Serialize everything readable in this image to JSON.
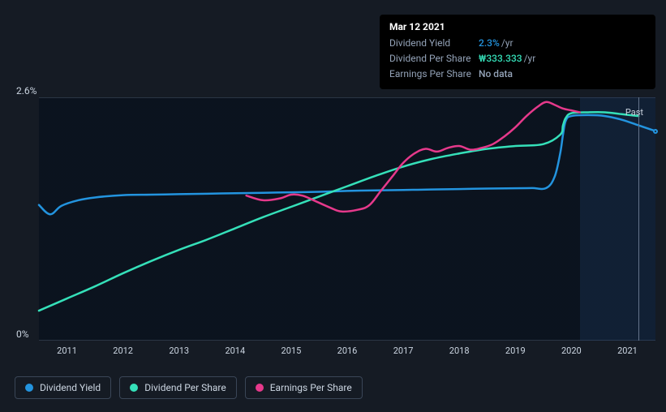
{
  "tooltip": {
    "date": "Mar 12 2021",
    "rows": [
      {
        "label": "Dividend Yield",
        "value": "2.3%",
        "suffix": "/yr",
        "color": "#2394df"
      },
      {
        "label": "Dividend Per Share",
        "value": "₩333.333",
        "suffix": "/yr",
        "color": "#35e0b9"
      },
      {
        "label": "Earnings Per Share",
        "value": "No data",
        "suffix": "",
        "color": "#94a3b8"
      }
    ]
  },
  "yaxis": {
    "min": 0,
    "max": 2.6,
    "ticks": [
      {
        "v": 0,
        "label": "0%"
      },
      {
        "v": 2.6,
        "label": "2.6%"
      }
    ],
    "label_fontsize": 12,
    "label_color": "#cbd5e1"
  },
  "xaxis": {
    "start_year": 2010.5,
    "end_year": 2021.5,
    "ticks": [
      2011,
      2012,
      2013,
      2014,
      2015,
      2016,
      2017,
      2018,
      2019,
      2020,
      2021
    ],
    "label_fontsize": 11,
    "label_color": "#cbd5e1"
  },
  "series": [
    {
      "id": "dividend_yield",
      "label": "Dividend Yield",
      "color": "#2394df",
      "width": 2.5,
      "data": [
        [
          2010.5,
          1.45
        ],
        [
          2010.7,
          1.35
        ],
        [
          2010.9,
          1.44
        ],
        [
          2011.2,
          1.5
        ],
        [
          2011.5,
          1.53
        ],
        [
          2012.0,
          1.555
        ],
        [
          2012.5,
          1.56
        ],
        [
          2013.0,
          1.565
        ],
        [
          2013.5,
          1.57
        ],
        [
          2014.0,
          1.575
        ],
        [
          2014.5,
          1.58
        ],
        [
          2015.0,
          1.585
        ],
        [
          2015.5,
          1.59
        ],
        [
          2016.0,
          1.6
        ],
        [
          2016.5,
          1.605
        ],
        [
          2017.0,
          1.61
        ],
        [
          2017.5,
          1.615
        ],
        [
          2018.0,
          1.62
        ],
        [
          2018.5,
          1.625
        ],
        [
          2019.0,
          1.628
        ],
        [
          2019.3,
          1.63
        ],
        [
          2019.55,
          1.63
        ],
        [
          2019.7,
          1.75
        ],
        [
          2019.8,
          2.0
        ],
        [
          2019.85,
          2.2
        ],
        [
          2019.9,
          2.35
        ],
        [
          2020.0,
          2.4
        ],
        [
          2020.3,
          2.41
        ],
        [
          2020.6,
          2.4
        ],
        [
          2020.9,
          2.36
        ],
        [
          2021.2,
          2.3
        ],
        [
          2021.5,
          2.24
        ]
      ]
    },
    {
      "id": "dividend_per_share",
      "label": "Dividend Per Share",
      "color": "#35e0b9",
      "width": 2.5,
      "data": [
        [
          2010.5,
          0.32
        ],
        [
          2011.0,
          0.45
        ],
        [
          2011.5,
          0.58
        ],
        [
          2012.0,
          0.72
        ],
        [
          2012.5,
          0.85
        ],
        [
          2013.0,
          0.97
        ],
        [
          2013.5,
          1.08
        ],
        [
          2014.0,
          1.2
        ],
        [
          2014.5,
          1.32
        ],
        [
          2015.0,
          1.43
        ],
        [
          2015.5,
          1.54
        ],
        [
          2016.0,
          1.65
        ],
        [
          2016.5,
          1.76
        ],
        [
          2017.0,
          1.86
        ],
        [
          2017.5,
          1.94
        ],
        [
          2018.0,
          2.0
        ],
        [
          2018.5,
          2.05
        ],
        [
          2019.0,
          2.08
        ],
        [
          2019.5,
          2.1
        ],
        [
          2019.8,
          2.2
        ],
        [
          2019.85,
          2.3
        ],
        [
          2019.9,
          2.38
        ],
        [
          2020.0,
          2.43
        ],
        [
          2020.3,
          2.44
        ],
        [
          2020.6,
          2.44
        ],
        [
          2020.9,
          2.42
        ],
        [
          2021.2,
          2.4
        ]
      ]
    },
    {
      "id": "earnings_per_share",
      "label": "Earnings Per Share",
      "color": "#e6398b",
      "width": 2.5,
      "data": [
        [
          2014.2,
          1.55
        ],
        [
          2014.5,
          1.5
        ],
        [
          2014.8,
          1.52
        ],
        [
          2015.0,
          1.56
        ],
        [
          2015.2,
          1.55
        ],
        [
          2015.4,
          1.5
        ],
        [
          2015.7,
          1.42
        ],
        [
          2015.9,
          1.38
        ],
        [
          2016.2,
          1.4
        ],
        [
          2016.4,
          1.45
        ],
        [
          2016.6,
          1.6
        ],
        [
          2016.8,
          1.75
        ],
        [
          2017.0,
          1.9
        ],
        [
          2017.2,
          2.0
        ],
        [
          2017.4,
          2.05
        ],
        [
          2017.6,
          2.02
        ],
        [
          2017.8,
          2.06
        ],
        [
          2018.0,
          2.08
        ],
        [
          2018.2,
          2.04
        ],
        [
          2018.4,
          2.06
        ],
        [
          2018.6,
          2.1
        ],
        [
          2018.8,
          2.18
        ],
        [
          2019.0,
          2.28
        ],
        [
          2019.2,
          2.4
        ],
        [
          2019.4,
          2.5
        ],
        [
          2019.55,
          2.55
        ],
        [
          2019.7,
          2.52
        ],
        [
          2019.85,
          2.48
        ],
        [
          2020.0,
          2.46
        ],
        [
          2020.15,
          2.44
        ]
      ]
    }
  ],
  "future_region": {
    "start_year": 2020.15,
    "end_year": 2021.5
  },
  "cursor_year": 2021.2,
  "past_label": "Past",
  "plot": {
    "bg": "#0a121e",
    "grid_color": "#2a3544",
    "future_shade_color": "rgba(35,70,120,0.25)"
  },
  "legend_border": "#3a4657",
  "end_markers": [
    {
      "series": "dividend_yield",
      "x": 2021.5,
      "y": 2.24,
      "color": "#2394df"
    }
  ]
}
